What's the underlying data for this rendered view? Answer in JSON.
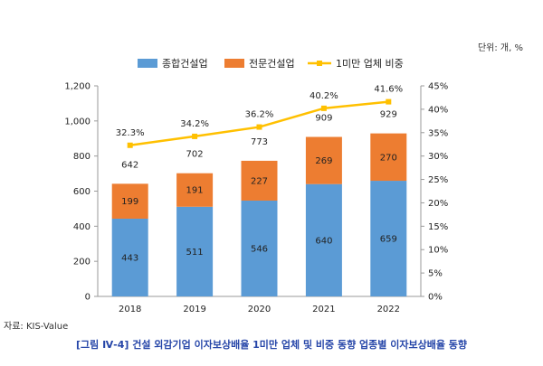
{
  "unit_label": "단위: 개, %",
  "source": "자료: KIS-Value",
  "caption": "[그림 Ⅳ-4] 건설 외감기업 이자보상배율 1미만 업체 및 비중 동향 업종별 이자보상배율 동향",
  "chart_data": {
    "type": "bar",
    "stacked": true,
    "categories": [
      "2018",
      "2019",
      "2020",
      "2021",
      "2022"
    ],
    "series": [
      {
        "name": "종합건설업",
        "type": "bar",
        "axis": "left",
        "color": "#5b9bd5",
        "values": [
          443,
          511,
          546,
          640,
          659
        ]
      },
      {
        "name": "전문건설업",
        "type": "bar",
        "axis": "left",
        "color": "#ed7d31",
        "values": [
          199,
          191,
          227,
          269,
          270
        ]
      },
      {
        "name": "1미만 업체 비중",
        "type": "line",
        "axis": "right",
        "color": "#ffc000",
        "values": [
          32.3,
          34.2,
          36.2,
          40.2,
          41.6
        ]
      }
    ],
    "totals": [
      642,
      702,
      773,
      909,
      929
    ],
    "y_left": {
      "min": 0,
      "max": 1200,
      "ticks": [
        "0",
        "200",
        "400",
        "600",
        "800",
        "1,000",
        "1,200"
      ]
    },
    "y_right": {
      "min": 0,
      "max": 45,
      "ticks": [
        "0%",
        "5%",
        "10%",
        "15%",
        "20%",
        "25%",
        "30%",
        "35%",
        "40%",
        "45%"
      ]
    },
    "line_labels": [
      "32.3%",
      "34.2%",
      "36.2%",
      "40.2%",
      "41.6%"
    ],
    "legend_position": "top",
    "grid": false
  }
}
